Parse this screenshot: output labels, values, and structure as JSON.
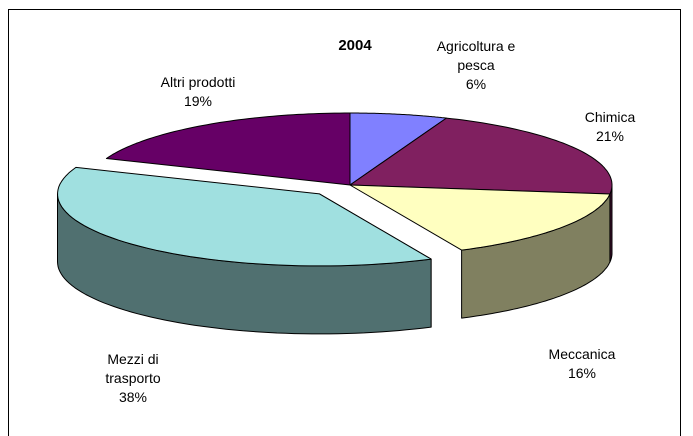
{
  "chart_data": {
    "type": "pie",
    "title": "2004",
    "categories": [
      "Agricoltura e pesca",
      "Chimica",
      "Meccanica",
      "Mezzi di trasporto",
      "Altri prodotti"
    ],
    "values": [
      6,
      21,
      16,
      38,
      19
    ],
    "value_labels": [
      "6%",
      "21%",
      "16%",
      "38%",
      "19%"
    ],
    "colors": [
      "#8080ff",
      "#802060",
      "#ffffc0",
      "#a0e0e0",
      "#660066"
    ]
  }
}
